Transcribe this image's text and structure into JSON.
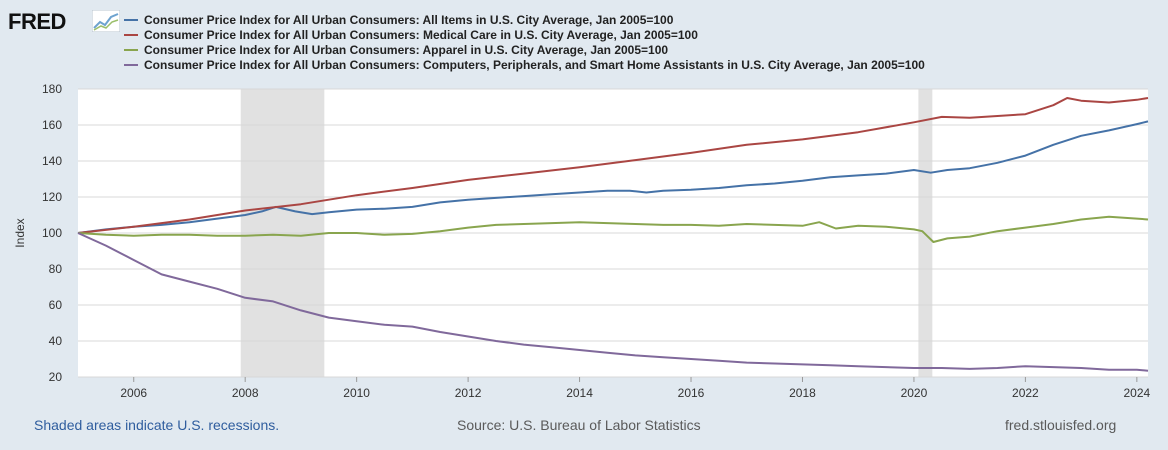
{
  "logo": {
    "text": "FRED",
    "icon": "fred-chart-icon"
  },
  "chart_data": {
    "type": "line",
    "title": "",
    "xlabel": "",
    "ylabel": "Index",
    "xlim": [
      2005.0,
      2024.2
    ],
    "ylim": [
      20,
      180
    ],
    "yticks": [
      20,
      40,
      60,
      80,
      100,
      120,
      140,
      160,
      180
    ],
    "ytick_labels": [
      "20",
      "40",
      "60",
      "80",
      "100",
      "120",
      "140",
      "160",
      "180"
    ],
    "xticks": [
      2006,
      2008,
      2010,
      2012,
      2014,
      2016,
      2018,
      2020,
      2022,
      2024
    ],
    "xtick_labels": [
      "2006",
      "2008",
      "2010",
      "2012",
      "2014",
      "2016",
      "2018",
      "2020",
      "2022",
      "2024"
    ],
    "grid": "horizontal",
    "legend_position": "top-left",
    "recessions": [
      [
        2007.92,
        2009.42
      ],
      [
        2020.08,
        2020.33
      ]
    ],
    "series": [
      {
        "name": "Consumer Price Index for All Urban Consumers: All Items in U.S. City Average, Jan 2005=100",
        "color": "#4572a7",
        "x": [
          2005.0,
          2005.5,
          2006.0,
          2006.5,
          2007.0,
          2007.5,
          2008.0,
          2008.3,
          2008.55,
          2008.9,
          2009.2,
          2009.5,
          2010.0,
          2010.5,
          2011.0,
          2011.5,
          2012.0,
          2012.5,
          2013.0,
          2013.5,
          2014.0,
          2014.5,
          2014.9,
          2015.2,
          2015.5,
          2016.0,
          2016.5,
          2017.0,
          2017.5,
          2018.0,
          2018.5,
          2019.0,
          2019.5,
          2020.0,
          2020.3,
          2020.6,
          2021.0,
          2021.5,
          2022.0,
          2022.5,
          2023.0,
          2023.5,
          2024.0,
          2024.2
        ],
        "values": [
          100.0,
          102.0,
          103.5,
          104.5,
          106.0,
          108.0,
          110.0,
          112.0,
          114.5,
          112.0,
          110.5,
          111.5,
          113.0,
          113.5,
          114.5,
          117.0,
          118.5,
          119.5,
          120.5,
          121.5,
          122.5,
          123.5,
          123.5,
          122.5,
          123.5,
          124.0,
          125.0,
          126.5,
          127.5,
          129.0,
          131.0,
          132.0,
          133.0,
          135.0,
          133.5,
          135.0,
          136.0,
          139.0,
          143.0,
          149.0,
          154.0,
          157.0,
          160.5,
          162.0
        ]
      },
      {
        "name": "Consumer Price Index for All Urban Consumers: Medical Care in U.S. City Average, Jan 2005=100",
        "color": "#aa4643",
        "x": [
          2005.0,
          2006.0,
          2007.0,
          2008.0,
          2009.0,
          2010.0,
          2011.0,
          2012.0,
          2013.0,
          2014.0,
          2015.0,
          2016.0,
          2017.0,
          2018.0,
          2019.0,
          2020.0,
          2020.5,
          2021.0,
          2021.5,
          2022.0,
          2022.5,
          2022.75,
          2023.0,
          2023.5,
          2024.0,
          2024.2
        ],
        "values": [
          100.0,
          103.5,
          107.5,
          112.5,
          116.0,
          121.0,
          125.0,
          129.5,
          133.0,
          136.5,
          140.5,
          144.5,
          149.0,
          152.0,
          156.0,
          161.5,
          164.5,
          164.0,
          165.0,
          166.0,
          171.0,
          175.0,
          173.5,
          172.5,
          174.0,
          175.0
        ]
      },
      {
        "name": "Consumer Price Index for All Urban Consumers: Apparel in U.S. City Average, Jan 2005=100",
        "color": "#89a54e",
        "x": [
          2005.0,
          2005.5,
          2006.0,
          2006.5,
          2007.0,
          2007.5,
          2008.0,
          2008.5,
          2009.0,
          2009.5,
          2010.0,
          2010.5,
          2011.0,
          2011.5,
          2012.0,
          2012.5,
          2013.0,
          2013.5,
          2014.0,
          2014.5,
          2015.0,
          2015.5,
          2016.0,
          2016.5,
          2017.0,
          2017.5,
          2018.0,
          2018.3,
          2018.6,
          2019.0,
          2019.5,
          2020.0,
          2020.15,
          2020.35,
          2020.6,
          2021.0,
          2021.5,
          2022.0,
          2022.5,
          2023.0,
          2023.5,
          2024.0,
          2024.2
        ],
        "values": [
          100.0,
          99.0,
          98.5,
          99.0,
          99.0,
          98.5,
          98.5,
          99.0,
          98.5,
          100.0,
          100.0,
          99.0,
          99.5,
          101.0,
          103.0,
          104.5,
          105.0,
          105.5,
          106.0,
          105.5,
          105.0,
          104.5,
          104.5,
          104.0,
          105.0,
          104.5,
          104.0,
          106.0,
          102.5,
          104.0,
          103.5,
          102.0,
          101.0,
          95.0,
          97.0,
          98.0,
          101.0,
          103.0,
          105.0,
          107.5,
          109.0,
          108.0,
          107.5
        ]
      },
      {
        "name": "Consumer Price Index for All Urban Consumers: Computers, Peripherals, and Smart Home Assistants in U.S. City Average, Jan 2005=100",
        "color": "#80699b",
        "x": [
          2005.0,
          2005.5,
          2006.0,
          2006.5,
          2007.0,
          2007.5,
          2008.0,
          2008.5,
          2009.0,
          2009.5,
          2010.0,
          2010.5,
          2011.0,
          2011.5,
          2012.0,
          2012.5,
          2013.0,
          2013.5,
          2014.0,
          2014.5,
          2015.0,
          2015.5,
          2016.0,
          2016.5,
          2017.0,
          2017.5,
          2018.0,
          2018.5,
          2019.0,
          2019.5,
          2020.0,
          2020.5,
          2021.0,
          2021.5,
          2022.0,
          2022.5,
          2023.0,
          2023.5,
          2024.0,
          2024.2
        ],
        "values": [
          100.0,
          93.0,
          85.0,
          77.0,
          73.0,
          69.0,
          64.0,
          62.0,
          57.0,
          53.0,
          51.0,
          49.0,
          48.0,
          45.0,
          42.5,
          40.0,
          38.0,
          36.5,
          35.0,
          33.5,
          32.0,
          31.0,
          30.0,
          29.0,
          28.0,
          27.5,
          27.0,
          26.5,
          26.0,
          25.5,
          25.0,
          25.0,
          24.5,
          25.0,
          26.0,
          25.5,
          25.0,
          24.0,
          24.0,
          23.5
        ]
      }
    ]
  },
  "footer": {
    "recession_note": "Shaded areas indicate U.S. recessions.",
    "source": "Source: U.S. Bureau of Labor Statistics",
    "site": "fred.stlouisfed.org"
  }
}
